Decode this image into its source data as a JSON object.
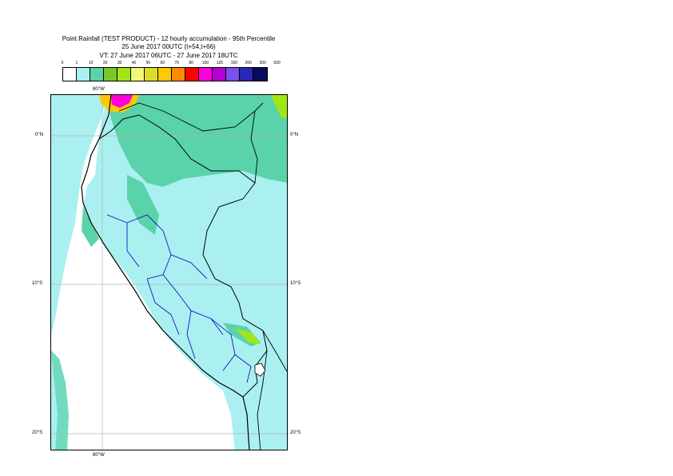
{
  "title": {
    "line1": "Point Rainfall (TEST PRODUCT) - 12 hourly accumulation - 95th Percentile",
    "line2": "25 June 2017 00UTC (t+54,t+66)",
    "line3": "VT: 27 June 2017 06UTC - 27 June 2017 18UTC"
  },
  "legend": {
    "labels": [
      "0",
      "1",
      "10",
      "20",
      "30",
      "40",
      "50",
      "60",
      "70",
      "80",
      "100",
      "125",
      "150",
      "200",
      "300",
      "500"
    ],
    "colors": [
      "#ffffff",
      "#aaf0f0",
      "#5ad2aa",
      "#78c828",
      "#a0e614",
      "#f0fa78",
      "#dcdc28",
      "#ffc800",
      "#ff8c00",
      "#ff0000",
      "#ff00dc",
      "#b400d2",
      "#7850f0",
      "#2828b4",
      "#0a0a5a"
    ]
  },
  "axes": {
    "lon_top": "80°W",
    "lon_bottom": "80°W",
    "lat_0_left": "0°N",
    "lat_0_right": "0°N",
    "lat_10_left": "10°S",
    "lat_10_right": "10°S",
    "lat_20_left": "20°S",
    "lat_20_right": "20°S"
  },
  "map": {
    "ocean_color": "#ffffff",
    "land_color": "#aaf0f0",
    "border_color": "#000000",
    "region_color": "#0000c8",
    "grid_color": "#b4b4b4"
  }
}
